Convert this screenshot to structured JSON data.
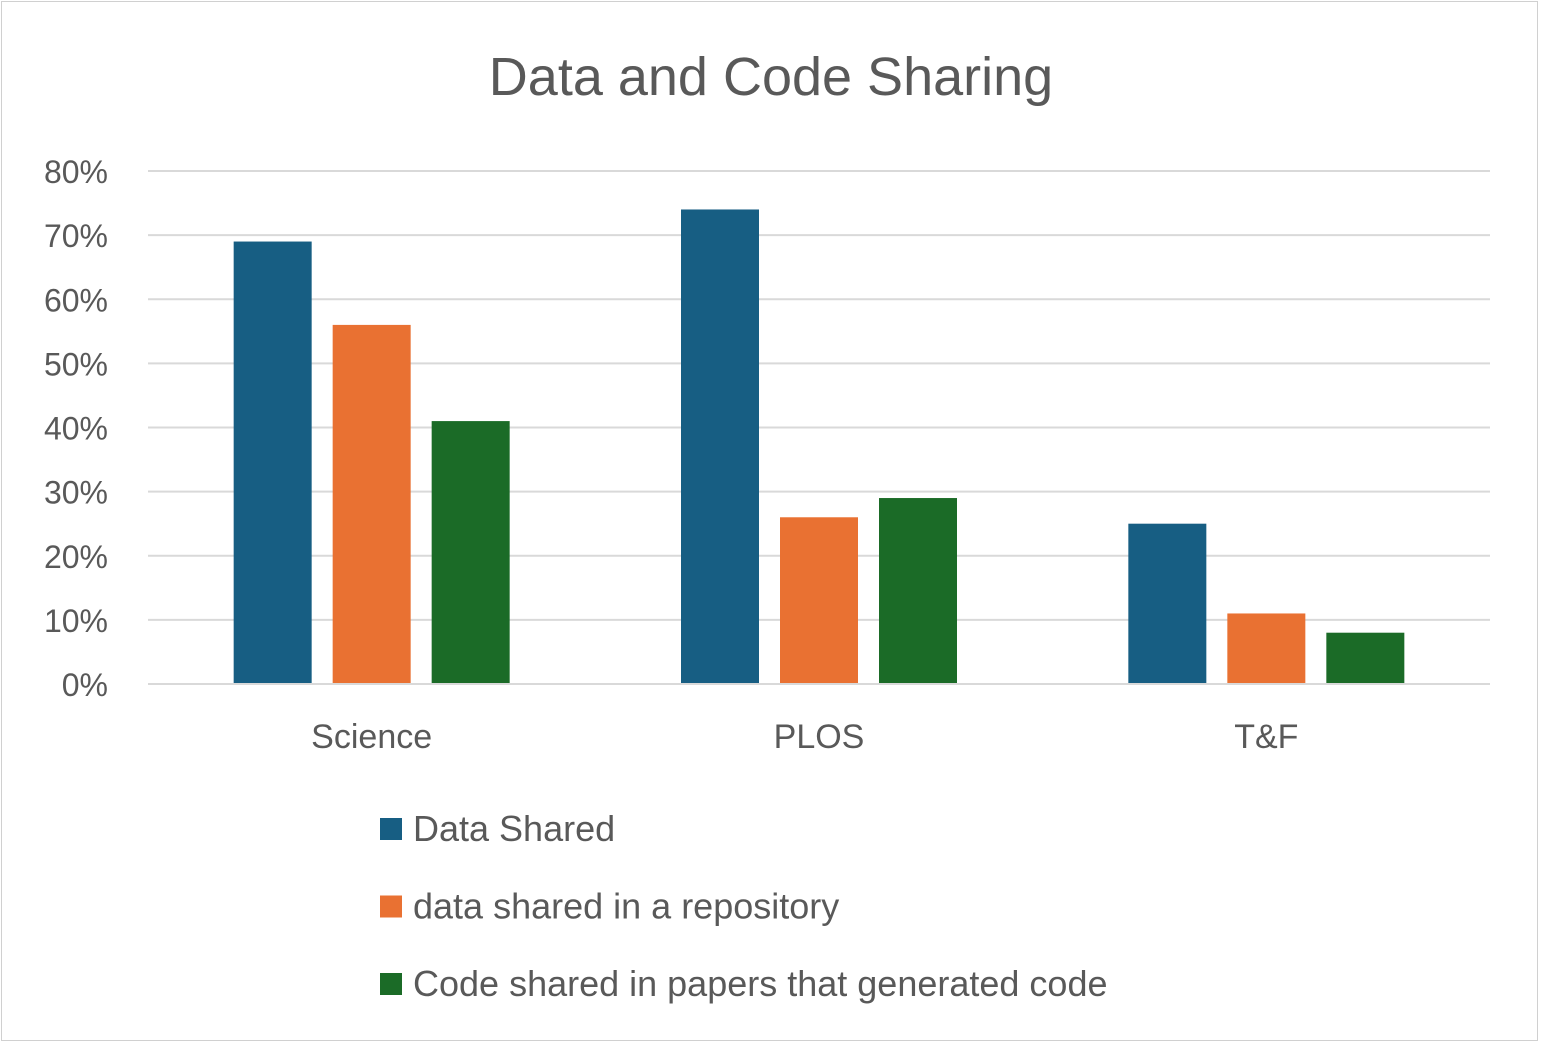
{
  "chart_data": {
    "type": "bar",
    "title": "Data and Code Sharing",
    "xlabel": "",
    "ylabel": "",
    "ylim": [
      0,
      80
    ],
    "yticks": [
      "0%",
      "10%",
      "20%",
      "30%",
      "40%",
      "50%",
      "60%",
      "70%",
      "80%"
    ],
    "grid": true,
    "legend_position": "bottom",
    "categories": [
      "Science",
      "PLOS",
      "T&F"
    ],
    "series": [
      {
        "name": "Data Shared",
        "color": "#175e83",
        "values": [
          69,
          74,
          25
        ]
      },
      {
        "name": "data shared in a repository",
        "color": "#e97132",
        "values": [
          56,
          26,
          11
        ]
      },
      {
        "name": "Code shared in papers that generated code",
        "color": "#1b6b27",
        "values": [
          41,
          29,
          8
        ]
      }
    ]
  }
}
